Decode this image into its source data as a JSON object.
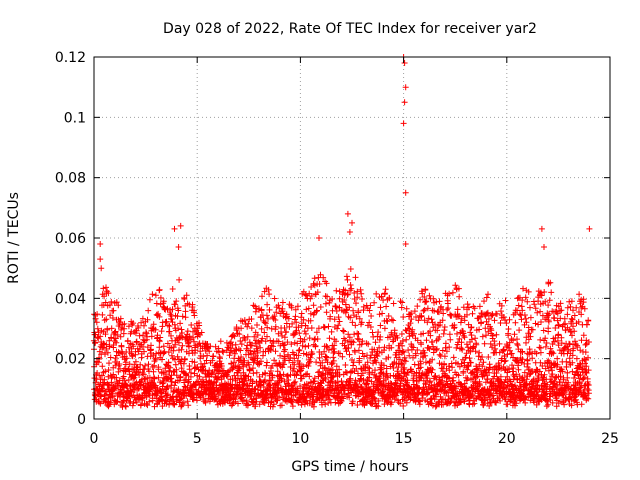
{
  "chart_data": {
    "type": "scatter",
    "title": "Day 028 of 2022, Rate Of TEC Index for receiver yar2",
    "xlabel": "GPS time / hours",
    "ylabel": "ROTI / TECUs",
    "xlim": [
      0,
      25
    ],
    "ylim": [
      0,
      0.12
    ],
    "x_ticks": [
      "0",
      "5",
      "10",
      "15",
      "20",
      "25"
    ],
    "y_ticks": [
      "0",
      "0.02",
      "0.04",
      "0.06",
      "0.08",
      "0.1",
      "0.12"
    ],
    "grid": true,
    "marker": "plus",
    "color": "#ff0000",
    "envelope_note": "dense cloud of ROTI points across 0–24 h, typically 0.005–0.03 TECUs",
    "upper_envelope": {
      "x": [
        0,
        0.5,
        1,
        1.5,
        2,
        2.5,
        3,
        3.5,
        4,
        4.5,
        5,
        5.5,
        6,
        6.5,
        7,
        7.5,
        8,
        8.5,
        9,
        9.5,
        10,
        10.5,
        11,
        11.5,
        12,
        12.5,
        13,
        13.5,
        14,
        14.5,
        15,
        15.5,
        16,
        16.5,
        17,
        17.5,
        18,
        18.5,
        19,
        19.5,
        20,
        20.5,
        21,
        21.5,
        22,
        22.5,
        23,
        23.5,
        24
      ],
      "y": [
        0.035,
        0.045,
        0.04,
        0.035,
        0.033,
        0.036,
        0.045,
        0.04,
        0.048,
        0.042,
        0.035,
        0.025,
        0.025,
        0.028,
        0.032,
        0.036,
        0.04,
        0.045,
        0.04,
        0.038,
        0.042,
        0.045,
        0.05,
        0.042,
        0.045,
        0.052,
        0.042,
        0.04,
        0.045,
        0.04,
        0.04,
        0.035,
        0.045,
        0.04,
        0.042,
        0.045,
        0.04,
        0.038,
        0.042,
        0.038,
        0.04,
        0.042,
        0.045,
        0.042,
        0.048,
        0.04,
        0.04,
        0.042,
        0.04
      ]
    },
    "notable_points": {
      "x": [
        0.3,
        0.3,
        0.35,
        3.9,
        4.1,
        4.2,
        10.9,
        12.3,
        12.4,
        12.5,
        15.0,
        15.05,
        15.1,
        15.05,
        15.0,
        15.1,
        15.1,
        21.7,
        21.8,
        24.0
      ],
      "y": [
        0.058,
        0.053,
        0.05,
        0.063,
        0.057,
        0.064,
        0.06,
        0.068,
        0.062,
        0.065,
        0.12,
        0.118,
        0.11,
        0.105,
        0.098,
        0.075,
        0.058,
        0.063,
        0.057,
        0.063
      ]
    },
    "series": [
      {
        "values_note": "dense plus-marker point cloud, thousands of samples; representative synthetic values generated per 0.05 h from the envelope"
      }
    ]
  }
}
